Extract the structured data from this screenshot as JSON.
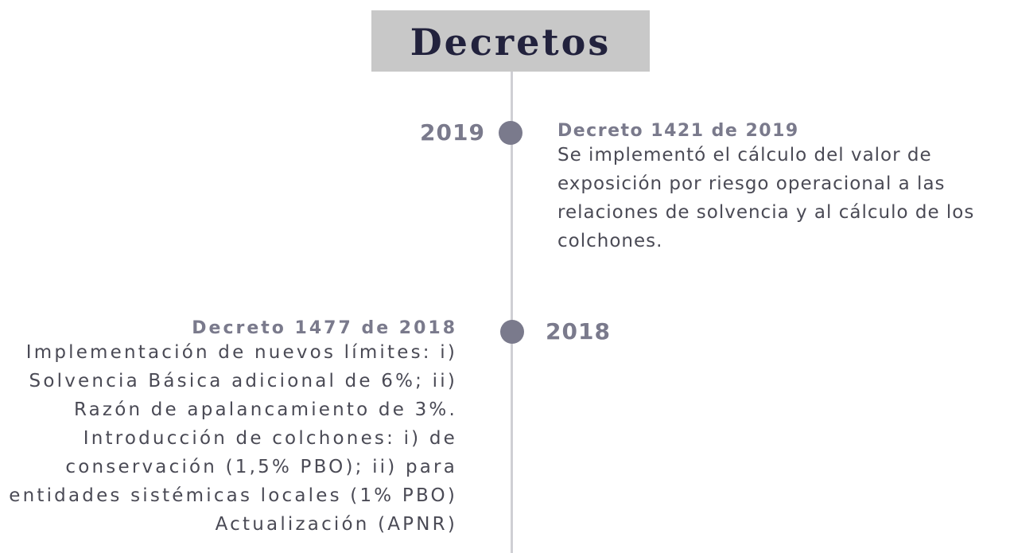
{
  "header": {
    "title": "Decretos"
  },
  "events": [
    {
      "year": "2019",
      "title": "Decreto 1421 de 2019",
      "text": "Se implementó el cálculo del valor de exposición por riesgo operacional a las relaciones de solvencia y al cálculo de los colchones."
    },
    {
      "year": "2018",
      "title": "Decreto 1477 de 2018",
      "text": "Implementación de nuevos límites: i) Solvencia Básica adicional de 6%; ii) Razón de apalancamiento de 3%. Introducción de colchones: i) de conservación (1,5% PBO); ii) para entidades sistémicas locales (1% PBO) Actualización (APNR)"
    }
  ]
}
